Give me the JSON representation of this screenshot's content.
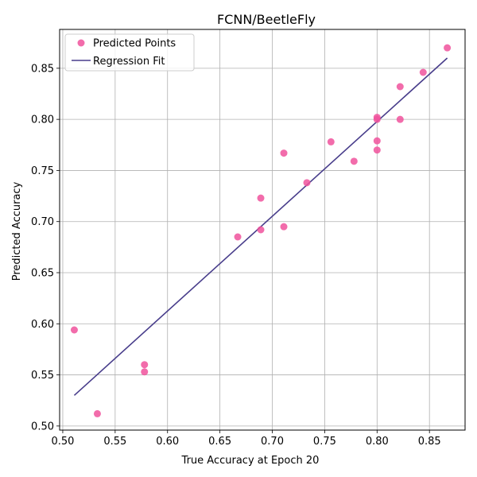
{
  "chart_data": {
    "type": "scatter",
    "title": "FCNN/BeetleFly",
    "xlabel": "True Accuracy at Epoch 20",
    "ylabel": "Predicted Accuracy",
    "xlim": [
      0.497,
      0.884
    ],
    "ylim": [
      0.496,
      0.888
    ],
    "xticks": [
      0.5,
      0.55,
      0.6,
      0.65,
      0.7,
      0.75,
      0.8,
      0.85
    ],
    "yticks": [
      0.5,
      0.55,
      0.6,
      0.65,
      0.7,
      0.75,
      0.8,
      0.85
    ],
    "xtick_labels": [
      "0.50",
      "0.55",
      "0.60",
      "0.65",
      "0.70",
      "0.75",
      "0.80",
      "0.85"
    ],
    "ytick_labels": [
      "0.50",
      "0.55",
      "0.60",
      "0.65",
      "0.70",
      "0.75",
      "0.80",
      "0.85"
    ],
    "grid": true,
    "legend_position": "top-left",
    "series": [
      {
        "name": "Predicted Points",
        "kind": "scatter",
        "color": "#f0529c",
        "points": [
          {
            "x": 0.511,
            "y": 0.594
          },
          {
            "x": 0.533,
            "y": 0.512
          },
          {
            "x": 0.578,
            "y": 0.56
          },
          {
            "x": 0.578,
            "y": 0.553
          },
          {
            "x": 0.667,
            "y": 0.685
          },
          {
            "x": 0.689,
            "y": 0.723
          },
          {
            "x": 0.689,
            "y": 0.692
          },
          {
            "x": 0.711,
            "y": 0.767
          },
          {
            "x": 0.711,
            "y": 0.695
          },
          {
            "x": 0.733,
            "y": 0.738
          },
          {
            "x": 0.756,
            "y": 0.778
          },
          {
            "x": 0.778,
            "y": 0.759
          },
          {
            "x": 0.8,
            "y": 0.802
          },
          {
            "x": 0.8,
            "y": 0.8
          },
          {
            "x": 0.8,
            "y": 0.779
          },
          {
            "x": 0.8,
            "y": 0.77
          },
          {
            "x": 0.822,
            "y": 0.832
          },
          {
            "x": 0.822,
            "y": 0.8
          },
          {
            "x": 0.844,
            "y": 0.846
          },
          {
            "x": 0.867,
            "y": 0.87
          }
        ]
      },
      {
        "name": "Regression Fit",
        "kind": "line",
        "color": "#483d8b",
        "points": [
          {
            "x": 0.511,
            "y": 0.53
          },
          {
            "x": 0.867,
            "y": 0.86
          }
        ]
      }
    ]
  }
}
